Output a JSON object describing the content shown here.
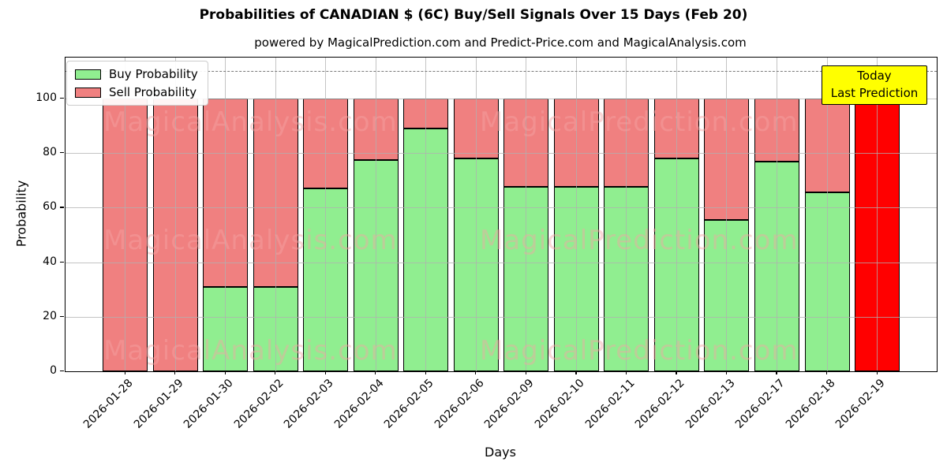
{
  "title": "Probabilities of CANADIAN $ (6C) Buy/Sell Signals Over 15 Days (Feb 20)",
  "subtitle": "powered by MagicalPrediction.com and Predict-Price.com and MagicalAnalysis.com",
  "axes": {
    "ylabel": "Probability",
    "xlabel": "Days"
  },
  "legend": [
    {
      "label": "Buy Probability",
      "color": "#90ee90"
    },
    {
      "label": "Sell Probability",
      "color": "#f08080"
    }
  ],
  "annotation": {
    "lines": [
      "Today",
      "Last Prediction"
    ],
    "bg": "#ffff00"
  },
  "watermark": {
    "left_text": "MagicalAnalysis.com",
    "right_text": "MagicalPrediction.com"
  },
  "chart_data": {
    "type": "bar",
    "stacked": true,
    "title": "Probabilities of CANADIAN $ (6C) Buy/Sell Signals Over 15 Days (Feb 20)",
    "xlabel": "Days",
    "ylabel": "Probability",
    "categories": [
      "2026-01-28",
      "2026-01-29",
      "2026-01-30",
      "2026-02-02",
      "2026-02-03",
      "2026-02-04",
      "2026-02-05",
      "2026-02-06",
      "2026-02-09",
      "2026-02-10",
      "2026-02-11",
      "2026-02-12",
      "2026-02-13",
      "2026-02-17",
      "2026-02-18",
      "2026-02-19"
    ],
    "series": [
      {
        "name": "Buy Probability",
        "color": "#90ee90",
        "values": [
          0,
          0,
          31,
          31,
          67,
          77.5,
          89,
          78,
          67.5,
          67.5,
          67.5,
          78,
          55.5,
          77,
          65.5,
          0
        ]
      },
      {
        "name": "Sell Probability",
        "color": "#f08080",
        "values": [
          100,
          100,
          69,
          69,
          33,
          22.5,
          11,
          22,
          32.5,
          32.5,
          32.5,
          22,
          44.5,
          23,
          34.5,
          100
        ]
      }
    ],
    "today_bar": {
      "index": 15,
      "color": "#ff0000"
    },
    "yticks": [
      0,
      20,
      40,
      60,
      80,
      100
    ],
    "ylim": [
      0,
      115
    ],
    "dashed_line_y": 110,
    "grid": true,
    "legend_position": "upper left",
    "bar_edge_color": "#000000"
  }
}
